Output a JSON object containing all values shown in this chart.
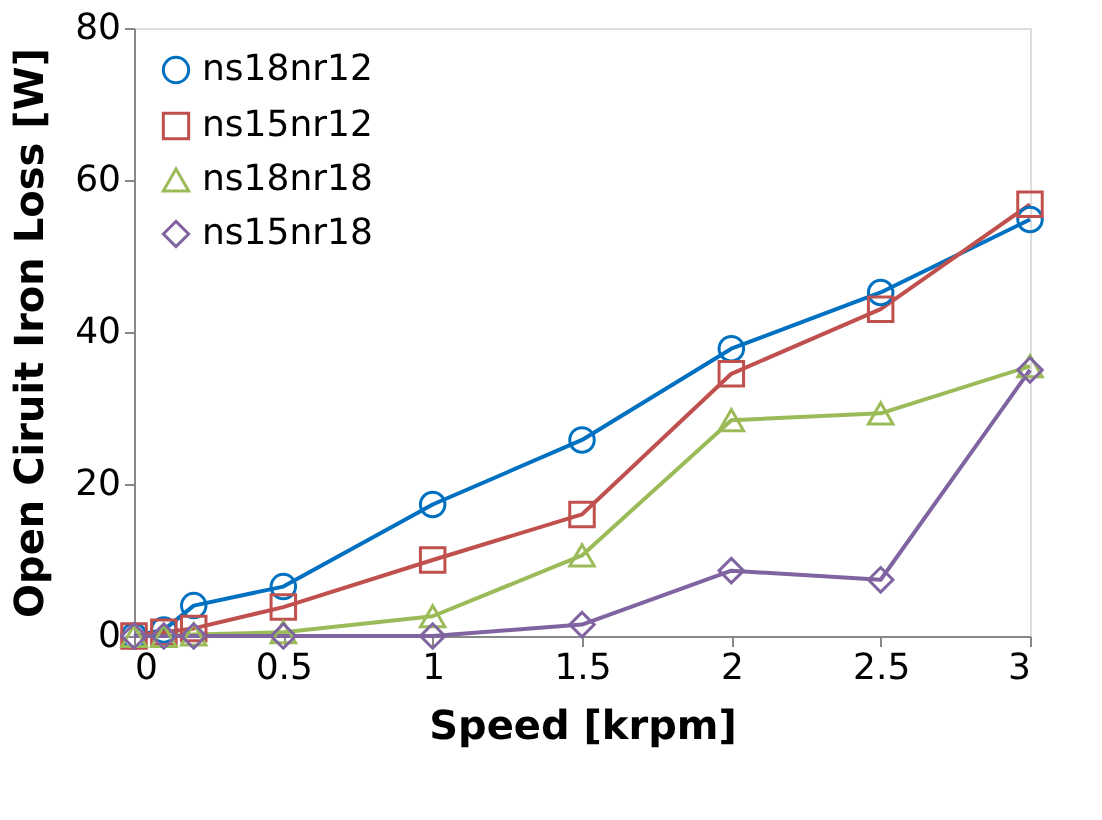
{
  "chart_data": {
    "type": "line",
    "xlabel": "Speed [krpm]",
    "ylabel": "Open Ciruit Iron Loss [W]",
    "x": [
      0,
      0.1,
      0.2,
      0.5,
      1,
      1.5,
      2,
      2.5,
      3
    ],
    "series": [
      {
        "name": "ns18nr12",
        "color": "#0070c0",
        "marker": "circle",
        "values": [
          0,
          0.8,
          4,
          6.5,
          17.3,
          25.8,
          37.8,
          45.2,
          54.8
        ]
      },
      {
        "name": "ns15nr12",
        "color": "#c0504d",
        "marker": "square",
        "values": [
          0,
          0.5,
          1,
          3.8,
          10,
          16,
          34.5,
          43,
          56.8
        ]
      },
      {
        "name": "ns18nr18",
        "color": "#9bbb59",
        "marker": "triangle",
        "values": [
          0,
          0,
          0.2,
          0.5,
          2.6,
          10.6,
          28.4,
          29.3,
          35.5
        ]
      },
      {
        "name": "ns15nr18",
        "color": "#8064a2",
        "marker": "diamond",
        "values": [
          0,
          0,
          0,
          0,
          0,
          1.5,
          8.6,
          7.4,
          35
        ]
      }
    ],
    "xlim": [
      0,
      3
    ],
    "xticks": [
      0,
      0.5,
      1,
      1.5,
      2,
      2.5,
      3
    ],
    "ylim": [
      0,
      80
    ],
    "yticks": [
      0,
      20,
      40,
      60,
      80
    ],
    "grid": false,
    "legend": "top left",
    "line_style": "solid"
  }
}
